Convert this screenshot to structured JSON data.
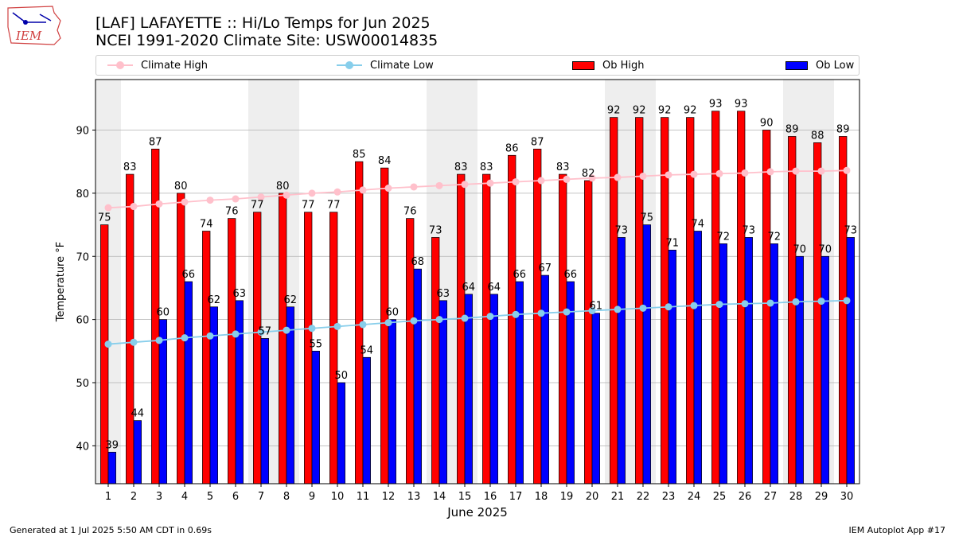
{
  "logo": {
    "text": "IEM"
  },
  "title_line1": "[LAF] LAFAYETTE :: Hi/Lo Temps for Jun 2025",
  "title_line2": "NCEI 1991-2020 Climate Site: USW00014835",
  "footer_left": "Generated at 1 Jul 2025 5:50 AM CDT in 0.69s",
  "footer_right": "IEM Autoplot App #17",
  "colors": {
    "ob_high": "#ff0000",
    "ob_low": "#0000ff",
    "climate_high": "#ffc0cb",
    "climate_low": "#87ceeb",
    "weekend_shade": "#eeeeee",
    "grid": "#b0b0b0"
  },
  "legend": [
    {
      "label": "Climate High",
      "kind": "line",
      "color": "#ffc0cb"
    },
    {
      "label": "Climate Low",
      "kind": "line",
      "color": "#87ceeb"
    },
    {
      "label": "Ob High",
      "kind": "box",
      "color": "#ff0000"
    },
    {
      "label": "Ob Low",
      "kind": "box",
      "color": "#0000ff"
    }
  ],
  "chart_data": {
    "type": "bar",
    "xlabel": "June 2025",
    "ylabel": "Temperature °F",
    "ylim": [
      34,
      98
    ],
    "yticks": [
      40,
      50,
      60,
      70,
      80,
      90
    ],
    "grid": "horizontal",
    "legend_position": "top",
    "x": [
      1,
      2,
      3,
      4,
      5,
      6,
      7,
      8,
      9,
      10,
      11,
      12,
      13,
      14,
      15,
      16,
      17,
      18,
      19,
      20,
      21,
      22,
      23,
      24,
      25,
      26,
      27,
      28,
      29,
      30
    ],
    "shaded_days": [
      1,
      7,
      8,
      14,
      15,
      21,
      22,
      28,
      29
    ],
    "series": [
      {
        "name": "Ob High",
        "type": "bar",
        "values": [
          75,
          83,
          87,
          80,
          74,
          76,
          77,
          80,
          77,
          77,
          85,
          84,
          76,
          73,
          83,
          83,
          86,
          87,
          83,
          82,
          92,
          92,
          92,
          92,
          93,
          93,
          90,
          89,
          88,
          89
        ]
      },
      {
        "name": "Ob Low",
        "type": "bar",
        "values": [
          39,
          44,
          60,
          66,
          62,
          63,
          57,
          62,
          55,
          50,
          54,
          60,
          68,
          63,
          64,
          64,
          66,
          67,
          66,
          61,
          73,
          75,
          71,
          74,
          72,
          73,
          72,
          70,
          70,
          73
        ]
      },
      {
        "name": "Climate High",
        "type": "line",
        "values": [
          77.7,
          77.9,
          78.3,
          78.6,
          78.9,
          79.1,
          79.4,
          79.7,
          80.0,
          80.2,
          80.5,
          80.8,
          81.0,
          81.2,
          81.4,
          81.6,
          81.8,
          82.0,
          82.2,
          82.4,
          82.5,
          82.7,
          82.9,
          83.0,
          83.1,
          83.2,
          83.4,
          83.5,
          83.5,
          83.6
        ]
      },
      {
        "name": "Climate Low",
        "type": "line",
        "values": [
          56.1,
          56.4,
          56.7,
          57.1,
          57.4,
          57.7,
          58.0,
          58.3,
          58.6,
          58.9,
          59.2,
          59.5,
          59.8,
          60.0,
          60.2,
          60.5,
          60.8,
          61.0,
          61.2,
          61.4,
          61.6,
          61.8,
          62.0,
          62.2,
          62.4,
          62.5,
          62.6,
          62.8,
          62.9,
          63.0
        ]
      }
    ]
  }
}
